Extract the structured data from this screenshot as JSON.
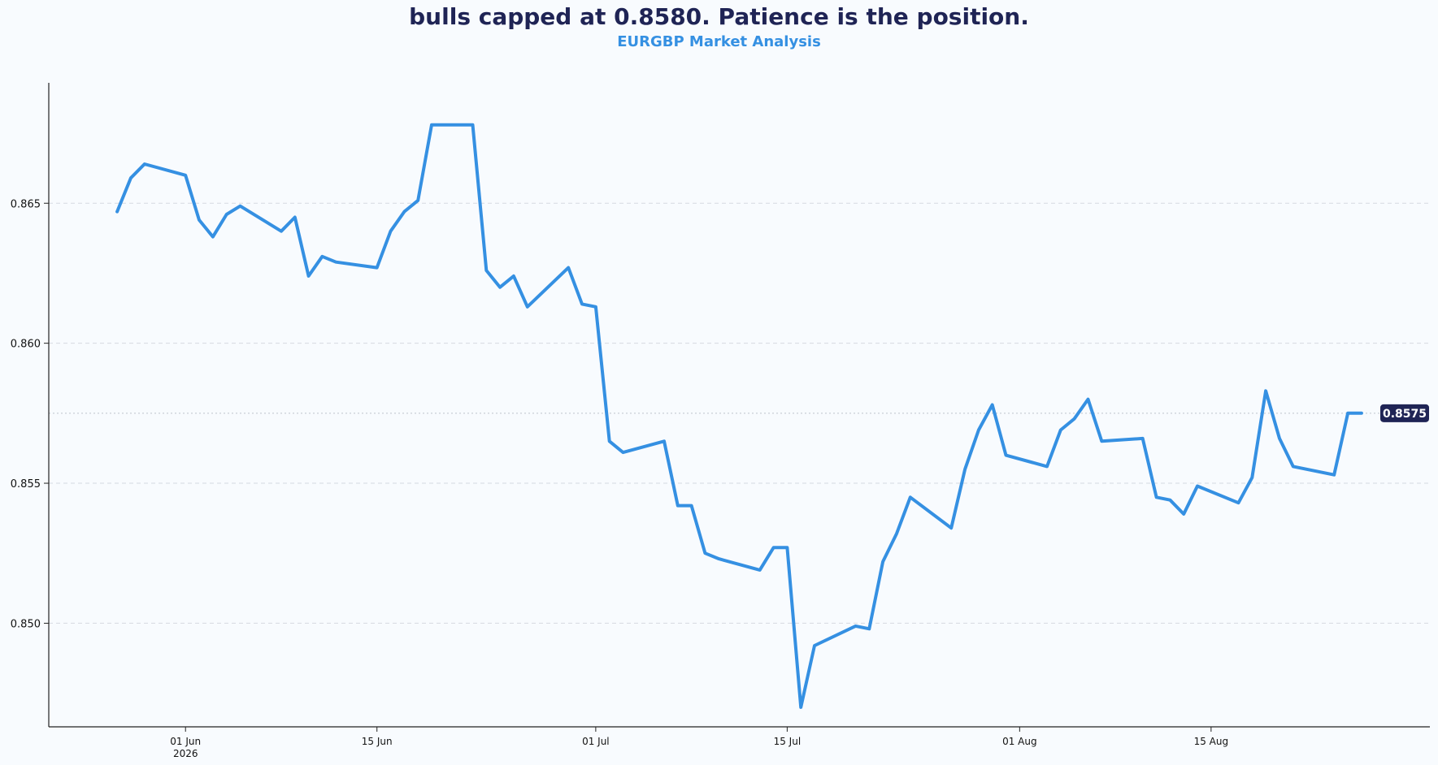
{
  "title": "bulls capped at 0.8580. Patience is the position.",
  "subtitle": "EURGBP Market Analysis",
  "colors": {
    "line": "#3590e2",
    "title": "#1f2455",
    "subtitle": "#3590e2",
    "badge": "#1f2455",
    "grid": "#d5d9e0"
  },
  "chart_data": {
    "type": "line",
    "title": "bulls capped at 0.8580. Patience is the position.",
    "subtitle": "EURGBP Market Analysis",
    "xlabel": "",
    "ylabel": "",
    "ylim": [
      0.8463,
      0.8693
    ],
    "xlim": [
      "2026-05-22",
      "2026-08-31"
    ],
    "grid": "horizontal dashed",
    "y_ticks": [
      {
        "value": 0.865,
        "label": "0.865"
      },
      {
        "value": 0.86,
        "label": "0.860"
      },
      {
        "value": 0.855,
        "label": "0.855"
      },
      {
        "value": 0.85,
        "label": "0.850"
      }
    ],
    "x_ticks": [
      {
        "date": "2026-06-01",
        "label": "01 Jun",
        "sublabel": "2026"
      },
      {
        "date": "2026-06-15",
        "label": "15 Jun",
        "sublabel": ""
      },
      {
        "date": "2026-07-01",
        "label": "01 Jul",
        "sublabel": ""
      },
      {
        "date": "2026-07-15",
        "label": "15 Jul",
        "sublabel": ""
      },
      {
        "date": "2026-08-01",
        "label": "01 Aug",
        "sublabel": ""
      },
      {
        "date": "2026-08-15",
        "label": "15 Aug",
        "sublabel": ""
      }
    ],
    "last_value": 0.8575,
    "last_value_label": "0.8575",
    "series": [
      {
        "x": [
          "2026-05-27",
          "2026-05-28",
          "2026-05-29",
          "2026-06-01",
          "2026-06-02",
          "2026-06-03",
          "2026-06-04",
          "2026-06-05",
          "2026-06-08",
          "2026-06-09",
          "2026-06-10",
          "2026-06-11",
          "2026-06-12",
          "2026-06-15",
          "2026-06-16",
          "2026-06-17",
          "2026-06-18",
          "2026-06-19",
          "2026-06-22",
          "2026-06-23",
          "2026-06-24",
          "2026-06-25",
          "2026-06-26",
          "2026-06-29",
          "2026-06-30",
          "2026-07-01",
          "2026-07-02",
          "2026-07-03",
          "2026-07-06",
          "2026-07-07",
          "2026-07-08",
          "2026-07-09",
          "2026-07-10",
          "2026-07-13",
          "2026-07-14",
          "2026-07-15",
          "2026-07-16",
          "2026-07-17",
          "2026-07-20",
          "2026-07-21",
          "2026-07-22",
          "2026-07-23",
          "2026-07-24",
          "2026-07-27",
          "2026-07-28",
          "2026-07-29",
          "2026-07-30",
          "2026-07-31",
          "2026-08-03",
          "2026-08-04",
          "2026-08-05",
          "2026-08-06",
          "2026-08-07",
          "2026-08-10",
          "2026-08-11",
          "2026-08-12",
          "2026-08-13",
          "2026-08-14",
          "2026-08-17",
          "2026-08-18",
          "2026-08-19",
          "2026-08-20",
          "2026-08-21",
          "2026-08-24",
          "2026-08-25",
          "2026-08-26"
        ],
        "y": [
          0.8647,
          0.8659,
          0.8664,
          0.866,
          0.8644,
          0.8638,
          0.8646,
          0.8649,
          0.864,
          0.8645,
          0.8624,
          0.8631,
          0.8629,
          0.8627,
          0.864,
          0.8647,
          0.8651,
          0.8678,
          0.8678,
          0.8626,
          0.862,
          0.8624,
          0.8613,
          0.8627,
          0.8614,
          0.8613,
          0.8565,
          0.8561,
          0.8565,
          0.8542,
          0.8542,
          0.8525,
          0.8523,
          0.8519,
          0.8527,
          0.8527,
          0.847,
          0.8492,
          0.8499,
          0.8498,
          0.8522,
          0.8532,
          0.8545,
          0.8534,
          0.8555,
          0.8569,
          0.8578,
          0.856,
          0.8556,
          0.8569,
          0.8573,
          0.858,
          0.8565,
          0.8566,
          0.8545,
          0.8544,
          0.8539,
          0.8549,
          0.8543,
          0.8552,
          0.8583,
          0.8566,
          0.8556,
          0.8553,
          0.8575,
          0.8575
        ]
      }
    ]
  }
}
